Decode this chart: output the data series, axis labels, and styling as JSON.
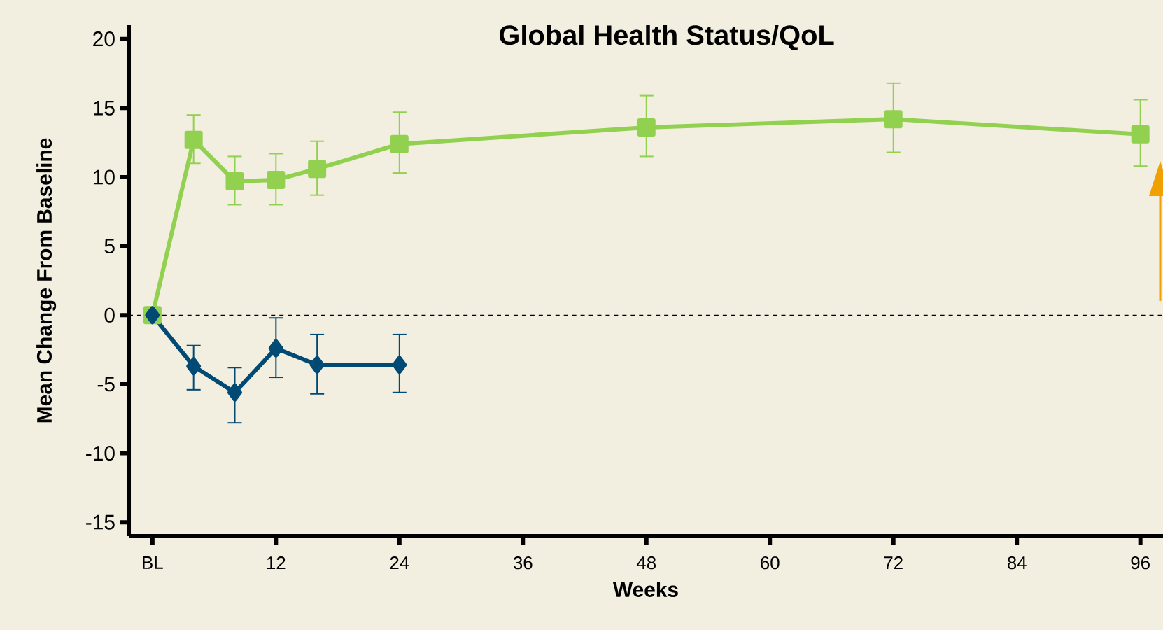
{
  "chart_data": {
    "type": "line",
    "title": "Global Health Status/QoL",
    "xlabel": "Weeks",
    "ylabel": "Mean Change From Baseline",
    "xlim": [
      -2.3,
      98.2
    ],
    "ylim": [
      -16,
      21
    ],
    "xticks": [
      {
        "value": 0,
        "label": "BL"
      },
      12,
      24,
      36,
      48,
      60,
      72,
      84,
      96
    ],
    "yticks": [
      -15,
      -10,
      -5,
      0,
      5,
      10,
      15,
      20
    ],
    "series": [
      {
        "color": "#92d050",
        "marker": "square",
        "x": [
          0,
          4,
          8,
          12,
          16,
          24,
          48,
          72,
          96
        ],
        "values": [
          0,
          12.7,
          9.7,
          9.8,
          10.6,
          12.4,
          13.6,
          14.2,
          13.1
        ],
        "errors": [
          null,
          [
            11.0,
            14.5
          ],
          [
            8.0,
            11.5
          ],
          [
            8.0,
            11.7
          ],
          [
            8.7,
            12.6
          ],
          [
            10.3,
            14.7
          ],
          [
            11.5,
            15.9
          ],
          [
            11.8,
            16.8
          ],
          [
            10.8,
            15.6
          ]
        ]
      },
      {
        "color": "#004a74",
        "marker": "diamond",
        "x": [
          0,
          4,
          8,
          12,
          16,
          24
        ],
        "values": [
          0,
          -3.7,
          -5.6,
          -2.4,
          -3.6,
          -3.6
        ],
        "errors": [
          null,
          [
            -5.4,
            -2.2
          ],
          [
            -7.8,
            -3.8
          ],
          [
            -4.5,
            -0.2
          ],
          [
            -5.7,
            -1.4
          ],
          [
            -5.6,
            -1.4
          ]
        ]
      }
    ],
    "ref_lines": [
      {
        "axis": "y",
        "value": 0,
        "color": "#000000",
        "line_style": "dashed"
      }
    ],
    "line_style": "solid"
  }
}
